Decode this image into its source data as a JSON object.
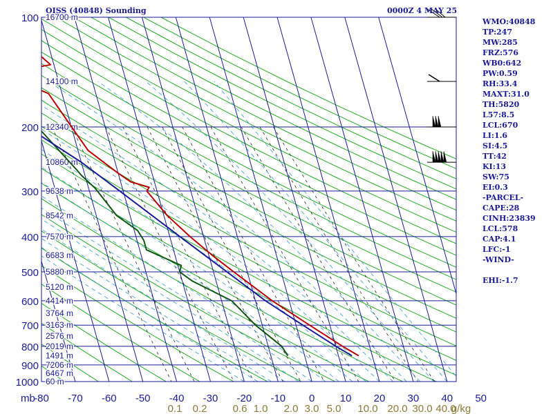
{
  "title": "OISS (40848) Sounding",
  "datetime": "0000Z  4 MAY 25",
  "colors": {
    "grid": "#1a1a99",
    "dry_adiabat": "#22aa22",
    "mixing_ratio": "#222222",
    "moist_adiabat": "#3399cc",
    "temperature": "#bb0000",
    "dewpoint": "#115511",
    "parcel": "#1a1a99",
    "text": "#1a1a99",
    "mixing_label": "#8a7a3a"
  },
  "chart_data": {
    "type": "line",
    "x_unit_label": "mb",
    "xlim": [
      -80,
      0
    ],
    "ylim": [
      1000,
      100
    ],
    "y_scale": "log",
    "x_ticks": [
      -80,
      -70,
      -60,
      -50,
      -40,
      -30,
      -20,
      -10,
      0,
      10,
      20,
      30,
      40,
      50
    ],
    "x_tick_labels": [
      "-80",
      "-70",
      "-60",
      "-50",
      "-40",
      "-30",
      "-20",
      "-10",
      "0",
      "10",
      "20",
      "30",
      "40",
      "50"
    ],
    "y_ticks": [
      100,
      200,
      300,
      400,
      500,
      600,
      700,
      800,
      900,
      1000
    ],
    "y_tick_labels": [
      "100",
      "200",
      "300",
      "400",
      "500",
      "600",
      "700",
      "800",
      "900",
      "1000"
    ],
    "height_labels": [
      {
        "p": 100,
        "label": "16700 m"
      },
      {
        "p": 150,
        "label": "14100 m"
      },
      {
        "p": 200,
        "label": "12340 m"
      },
      {
        "p": 250,
        "label": "10860 m"
      },
      {
        "p": 300,
        "label": "9638 m"
      },
      {
        "p": 350,
        "label": "8542 m"
      },
      {
        "p": 400,
        "label": "7570 m"
      },
      {
        "p": 450,
        "label": "6683 m"
      },
      {
        "p": 500,
        "label": "5880 m"
      },
      {
        "p": 550,
        "label": "5120 m"
      },
      {
        "p": 600,
        "label": "4414 m"
      },
      {
        "p": 650,
        "label": "3764 m"
      },
      {
        "p": 700,
        "label": "3163 m"
      },
      {
        "p": 750,
        "label": "2576 m"
      },
      {
        "p": 800,
        "label": "2019 m"
      },
      {
        "p": 850,
        "label": "1491 m"
      },
      {
        "p": 900,
        "label": "7206 m"
      },
      {
        "p": 950,
        "label": "6467 m"
      },
      {
        "p": 1000,
        "label": "60 m"
      }
    ],
    "mixing_ratio_labels": [
      "0.1",
      "0.2",
      "0.6",
      "1.0",
      "2.0",
      "3.0",
      "5.0",
      "10.0",
      "20.0",
      "30.0",
      "40.0"
    ],
    "mixing_ratio_unit": "g/kg",
    "series": [
      {
        "key": "temperature",
        "points": [
          {
            "p": 100,
            "t": -63
          },
          {
            "p": 135,
            "t": -51
          },
          {
            "p": 143,
            "t": -66
          },
          {
            "p": 162,
            "t": -54
          },
          {
            "p": 210,
            "t": -49
          },
          {
            "p": 232,
            "t": -47
          },
          {
            "p": 247,
            "t": -44
          },
          {
            "p": 268,
            "t": -40
          },
          {
            "p": 283,
            "t": -37
          },
          {
            "p": 293,
            "t": -32
          },
          {
            "p": 300,
            "t": -33
          },
          {
            "p": 350,
            "t": -29
          },
          {
            "p": 400,
            "t": -24
          },
          {
            "p": 450,
            "t": -19
          },
          {
            "p": 500,
            "t": -14
          },
          {
            "p": 600,
            "t": -5
          },
          {
            "p": 700,
            "t": 4
          },
          {
            "p": 800,
            "t": 12
          },
          {
            "p": 850,
            "t": 16
          }
        ]
      },
      {
        "key": "dewpoint",
        "points": [
          {
            "p": 105,
            "t": -77
          },
          {
            "p": 130,
            "t": -68
          },
          {
            "p": 135,
            "t": -61
          },
          {
            "p": 150,
            "t": -80
          },
          {
            "p": 155,
            "t": -72
          },
          {
            "p": 160,
            "t": -68
          },
          {
            "p": 200,
            "t": -60
          },
          {
            "p": 245,
            "t": -54
          },
          {
            "p": 262,
            "t": -52
          },
          {
            "p": 272,
            "t": -51
          },
          {
            "p": 295,
            "t": -48
          },
          {
            "p": 350,
            "t": -44
          },
          {
            "p": 385,
            "t": -39
          },
          {
            "p": 410,
            "t": -38
          },
          {
            "p": 435,
            "t": -38
          },
          {
            "p": 480,
            "t": -29
          },
          {
            "p": 500,
            "t": -30
          },
          {
            "p": 530,
            "t": -27
          },
          {
            "p": 600,
            "t": -17
          },
          {
            "p": 700,
            "t": -12
          },
          {
            "p": 800,
            "t": -6
          },
          {
            "p": 850,
            "t": -5
          }
        ]
      },
      {
        "key": "parcel",
        "points": [
          {
            "p": 150,
            "t": -80
          },
          {
            "p": 250,
            "t": -50
          },
          {
            "p": 300,
            "t": -41
          },
          {
            "p": 400,
            "t": -27
          },
          {
            "p": 500,
            "t": -16
          },
          {
            "p": 600,
            "t": -7
          },
          {
            "p": 700,
            "t": 2
          },
          {
            "p": 800,
            "t": 10
          },
          {
            "p": 850,
            "t": 14
          }
        ]
      }
    ],
    "wind_barb_levels": [
      100,
      150,
      200,
      250
    ]
  },
  "sidebar": [
    "WMO:40848",
    "TP:247",
    "MW:285",
    "FRZ:576",
    "WB0:642",
    "PW:0.59",
    "RH:33.4",
    "MAXT:31.0",
    "TH:5820",
    "L57:8.5",
    "LCL:670",
    "LI:1.6",
    "SI:4.5",
    "TT:42",
    "KI:13",
    "SW:75",
    "EI:0.3",
    "-PARCEL-",
    "CAPE:28",
    "CINH:23839",
    "LCL:578",
    "CAP:4.1",
    "LFC:-1",
    "-WIND-",
    "",
    "EHI:-1.7"
  ]
}
